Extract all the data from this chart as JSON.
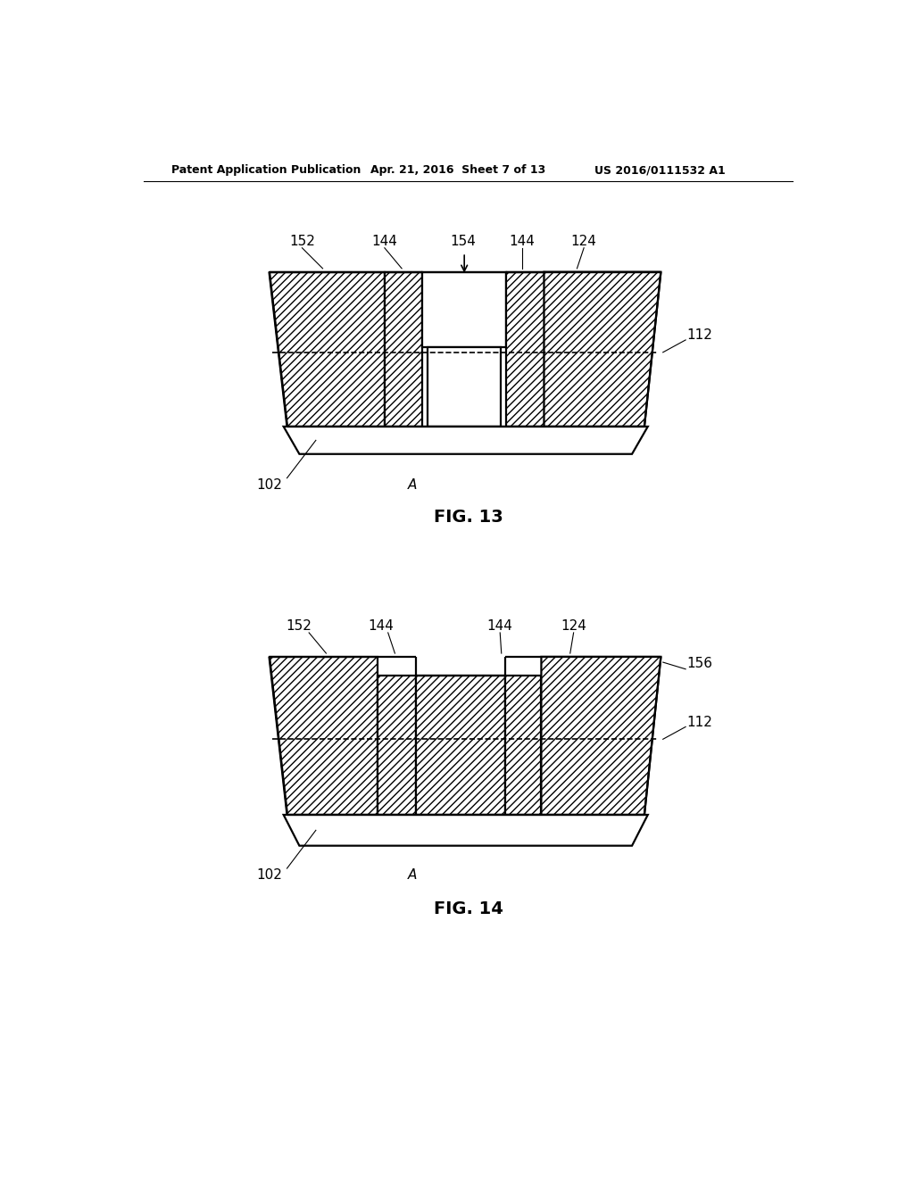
{
  "bg_color": "#ffffff",
  "line_color": "#000000",
  "header_text": "Patent Application Publication",
  "header_date": "Apr. 21, 2016  Sheet 7 of 13",
  "header_patent": "US 2016/0111532 A1",
  "fig13_label": "FIG. 13",
  "fig14_label": "FIG. 14",
  "fontsize_label": 11,
  "fontsize_caption": 14,
  "fontsize_header": 9,
  "lw": 1.6
}
